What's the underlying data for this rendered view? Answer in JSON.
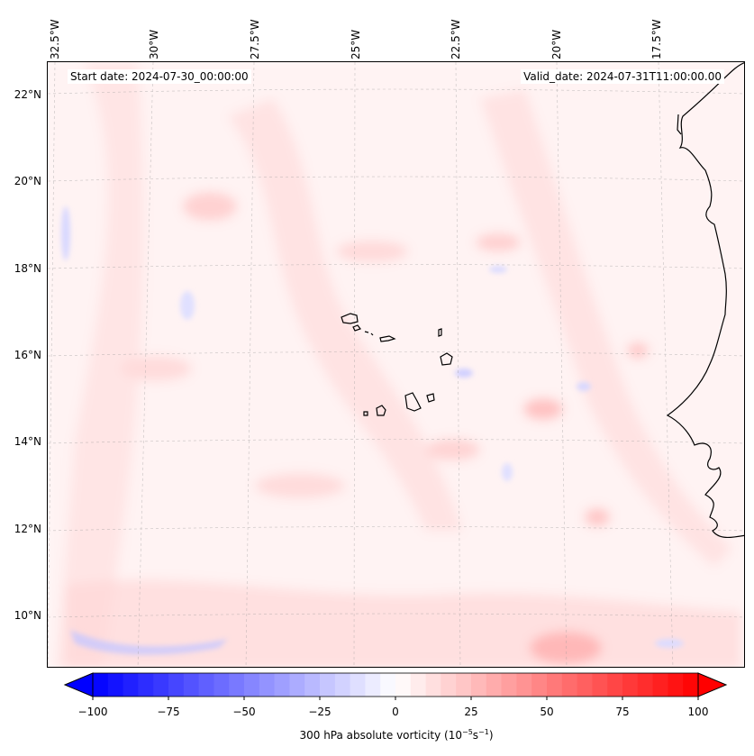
{
  "header": {
    "start_date": "Start date: 2024-07-30_00:00:00",
    "valid_date": "Valid_date: 2024-07-31T11:00:00.00"
  },
  "axes": {
    "lon_labels": [
      "32.5°W",
      "30°W",
      "27.5°W",
      "25°W",
      "22.5°W",
      "20°W",
      "17.5°W"
    ],
    "lat_labels": [
      "22°N",
      "20°N",
      "18°N",
      "16°N",
      "14°N",
      "12°N",
      "10°N"
    ]
  },
  "colorbar": {
    "ticks": [
      "−100",
      "−75",
      "−50",
      "−25",
      "0",
      "25",
      "50",
      "75",
      "100"
    ],
    "label_prefix": "300 hPa absolute vorticity (10",
    "label_exp1": "−5",
    "label_mid": "s",
    "label_exp2": "−1",
    "label_suffix": ")",
    "min": -100,
    "max": 100,
    "colors": {
      "negative": "#0000ff",
      "zero": "#ffffff",
      "positive": "#ff0000"
    }
  },
  "map": {
    "variable": "300 hPa absolute vorticity",
    "region": "Cabo Verde and West African coast"
  }
}
